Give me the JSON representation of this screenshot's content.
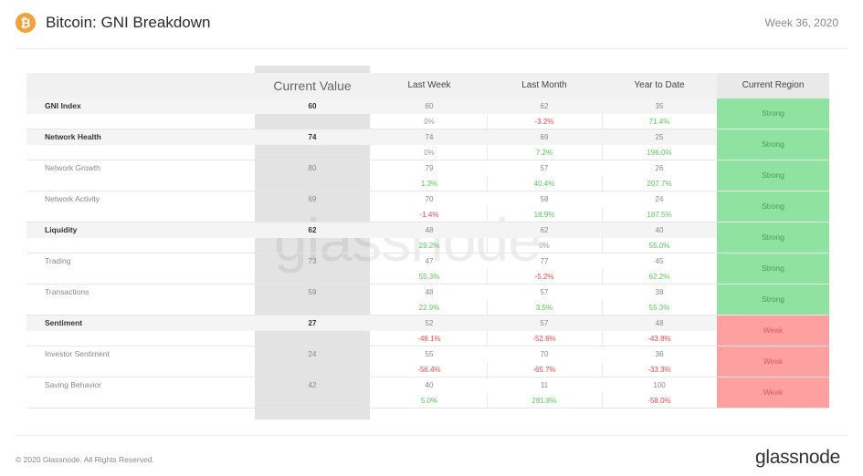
{
  "header": {
    "title": "Bitcoin: GNI Breakdown",
    "week": "Week 36, 2020",
    "icon": "bitcoin-icon",
    "icon_glyph": "₿"
  },
  "table": {
    "columns": [
      "Current Value",
      "Last Week",
      "Last Month",
      "Year to Date",
      "Current Region"
    ],
    "rows": [
      {
        "label": "GNI Index",
        "bold": true,
        "current": "60",
        "last_week": "60",
        "last_month": "62",
        "ytd": "35",
        "chg_week": "0%",
        "chg_month": "-3.2%",
        "chg_ytd": "71.4%",
        "region": "Strong"
      },
      {
        "label": "Network Health",
        "bold": true,
        "current": "74",
        "last_week": "74",
        "last_month": "69",
        "ytd": "25",
        "chg_week": "0%",
        "chg_month": "7.2%",
        "chg_ytd": "196.0%",
        "region": "Strong"
      },
      {
        "label": "Network Growth",
        "bold": false,
        "current": "80",
        "last_week": "79",
        "last_month": "57",
        "ytd": "26",
        "chg_week": "1.3%",
        "chg_month": "40.4%",
        "chg_ytd": "207.7%",
        "region": "Strong"
      },
      {
        "label": "Network Activity",
        "bold": false,
        "current": "69",
        "last_week": "70",
        "last_month": "58",
        "ytd": "24",
        "chg_week": "-1.4%",
        "chg_month": "18.9%",
        "chg_ytd": "187.5%",
        "region": "Strong"
      },
      {
        "label": "Liquidity",
        "bold": true,
        "current": "62",
        "last_week": "48",
        "last_month": "62",
        "ytd": "40",
        "chg_week": "29.2%",
        "chg_month": "0%",
        "chg_ytd": "55.0%",
        "region": "Strong"
      },
      {
        "label": "Trading",
        "bold": false,
        "current": "73",
        "last_week": "47",
        "last_month": "77",
        "ytd": "45",
        "chg_week": "55.3%",
        "chg_month": "-5.2%",
        "chg_ytd": "62.2%",
        "region": "Strong"
      },
      {
        "label": "Transactions",
        "bold": false,
        "current": "59",
        "last_week": "48",
        "last_month": "57",
        "ytd": "38",
        "chg_week": "22.9%",
        "chg_month": "3.5%",
        "chg_ytd": "55.3%",
        "region": "Strong"
      },
      {
        "label": "Sentiment",
        "bold": true,
        "current": "27",
        "last_week": "52",
        "last_month": "57",
        "ytd": "48",
        "chg_week": "-48.1%",
        "chg_month": "-52.6%",
        "chg_ytd": "-43.8%",
        "region": "Weak"
      },
      {
        "label": "Investor Sentiment",
        "bold": false,
        "current": "24",
        "last_week": "55",
        "last_month": "70",
        "ytd": "36",
        "chg_week": "-56.4%",
        "chg_month": "-65.7%",
        "chg_ytd": "-33.3%",
        "region": "Weak"
      },
      {
        "label": "Saving Behavior",
        "bold": false,
        "current": "42",
        "last_week": "40",
        "last_month": "11",
        "ytd": "100",
        "chg_week": "5.0%",
        "chg_month": "281.8%",
        "chg_ytd": "-58.0%",
        "region": "Weak"
      }
    ]
  },
  "colors": {
    "positive": "#5cc45c",
    "negative": "#e84a4a",
    "neutral": "#999999",
    "strong_bg": "#8fe29f",
    "strong_text": "#4a9a55",
    "weak_bg": "#ffa0a0",
    "weak_text": "#e05858",
    "icon_bg": "#f2a13b"
  },
  "watermark": "glassnode",
  "footer": {
    "copyright": "© 2020 Glassnode. All Rights Reserved.",
    "logo": "glassnode"
  }
}
